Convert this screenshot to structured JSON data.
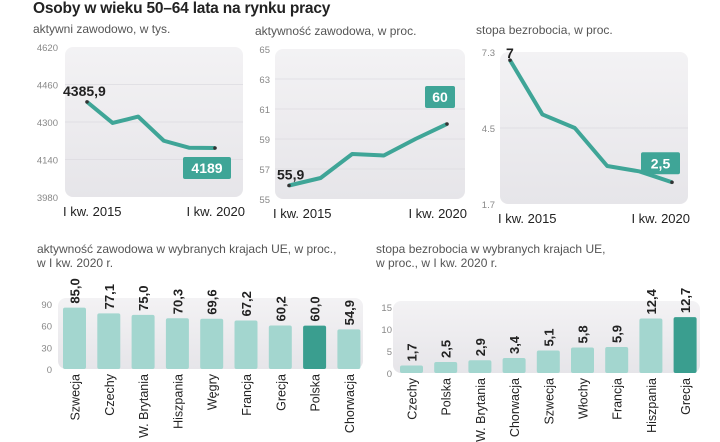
{
  "title": "Osoby w wieku 50–64 lata na rynku pracy",
  "colors": {
    "line": "#3fa597",
    "bar": "#a3d6cf",
    "bar_highlight": "#3a9e8f",
    "panel": "#ecebee",
    "tag": "#3fa597"
  },
  "chart_data": [
    {
      "type": "line",
      "title": "aktywni zawodowo, w tys.",
      "x": [
        "I kw. 2015",
        "",
        "",
        "",
        "",
        "I kw. 2020"
      ],
      "values": [
        4385.9,
        4296,
        4323,
        4220,
        4190,
        4189
      ],
      "yticks": [
        "4620",
        "4460",
        "4300",
        "4140",
        "3980"
      ],
      "ylim": [
        3980,
        4620
      ],
      "start_label": "4385,9",
      "end_label": "4189",
      "xlabels": [
        "I kw. 2015",
        "I kw. 2020"
      ],
      "grid": true
    },
    {
      "type": "line",
      "title": "aktywność zawodowa, w proc.",
      "x": [
        "I kw. 2015",
        "",
        "",
        "",
        "",
        "I kw. 2020"
      ],
      "values": [
        55.9,
        56.4,
        58.0,
        57.9,
        59.0,
        60.0
      ],
      "yticks": [
        "65",
        "63",
        "61",
        "59",
        "57",
        "55"
      ],
      "ylim": [
        55,
        65
      ],
      "start_label": "55,9",
      "end_label": "60",
      "xlabels": [
        "I kw. 2015",
        "I kw. 2020"
      ],
      "grid": true
    },
    {
      "type": "line",
      "title": "stopa bezrobocia, w proc.",
      "x": [
        "I kw. 2015",
        "",
        "",
        "",
        "",
        "I kw. 2020"
      ],
      "values": [
        7.0,
        5.0,
        4.5,
        3.1,
        2.9,
        2.5
      ],
      "yticks": [
        "7.3",
        "4.5",
        "1.7"
      ],
      "ylim": [
        1.7,
        7.3
      ],
      "start_label": "7",
      "end_label": "2,5",
      "xlabels": [
        "I kw. 2015",
        "I kw. 2020"
      ],
      "grid": true
    },
    {
      "type": "bar",
      "title": [
        "aktywność zawodowa w wybranych krajach UE, w proc.,",
        "w I kw. 2020 r."
      ],
      "categories": [
        "Szwecja",
        "Czechy",
        "W. Brytania",
        "Hiszpania",
        "Węgry",
        "Francja",
        "Grecja",
        "Polska",
        "Chorwacja"
      ],
      "values": [
        85.0,
        77.1,
        75.0,
        70.3,
        69.6,
        67.2,
        60.2,
        60.0,
        54.9
      ],
      "value_labels": [
        "85,0",
        "77,1",
        "75,0",
        "70,3",
        "69,6",
        "67,2",
        "60,2",
        "60,0",
        "54,9"
      ],
      "highlight": "Polska",
      "yticks": [
        "0",
        "30",
        "60",
        "90"
      ],
      "ylim": [
        0,
        90
      ]
    },
    {
      "type": "bar",
      "title": [
        "stopa bezrobocia w wybranych krajach UE,",
        "w proc., w I kw. 2020 r."
      ],
      "categories": [
        "Czechy",
        "Polska",
        "W. Brytania",
        "Chorwacja",
        "Szwecja",
        "Włochy",
        "Francja",
        "Hiszpania",
        "Grecja"
      ],
      "values": [
        1.7,
        2.5,
        2.9,
        3.4,
        5.1,
        5.8,
        5.9,
        12.4,
        12.7
      ],
      "value_labels": [
        "1,7",
        "2,5",
        "2,9",
        "3,4",
        "5,1",
        "5,8",
        "5,9",
        "12,4",
        "12,7"
      ],
      "highlight": "Grecja",
      "yticks": [
        "0",
        "5",
        "10",
        "15"
      ],
      "ylim": [
        0,
        15
      ]
    }
  ]
}
